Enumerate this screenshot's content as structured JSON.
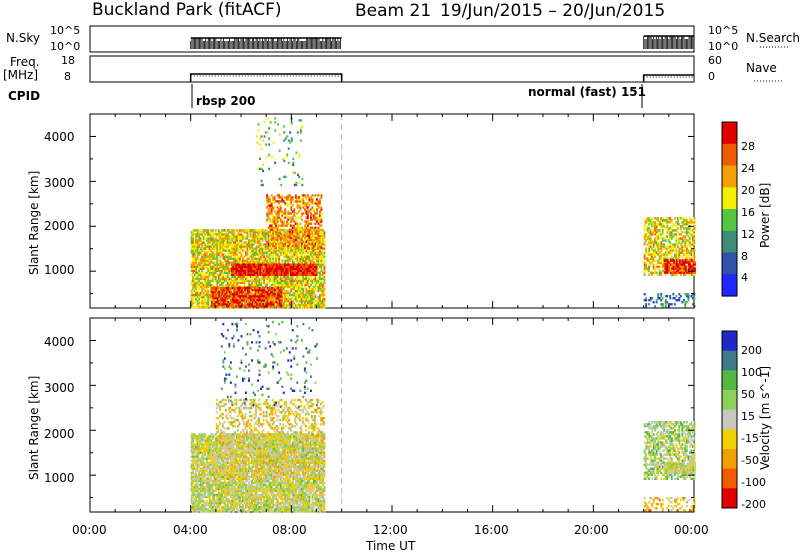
{
  "header": {
    "station": "Buckland Park (fitACF)",
    "beam": "Beam 21",
    "date_range": "19/Jun/2015 – 20/Jun/2015"
  },
  "status": {
    "nsky_label": "N.Sky",
    "nsky_ticks": [
      "10^5",
      "10^0"
    ],
    "nsearch_label": "N.Search",
    "nsearch_ticks": [
      "10^5",
      "10^0"
    ],
    "freq_label": "Freq.",
    "freq_unit": "[MHz]",
    "freq_ticks": [
      "18",
      "8"
    ],
    "nave_label": "Nave",
    "nave_ticks": [
      "60",
      "0"
    ],
    "cpid_label": "CPID",
    "cpid_modes": [
      "rbsp 200",
      "normal (fast) 151"
    ]
  },
  "axes": {
    "xlabel": "Time UT",
    "xticks": [
      "00:00",
      "04:00",
      "08:00",
      "12:00",
      "16:00",
      "20:00",
      "00:00"
    ],
    "ylabel": "Slant Range [km]",
    "yticks": [
      "1000",
      "2000",
      "3000",
      "4000"
    ]
  },
  "chart_data": [
    {
      "type": "heatmap",
      "title": "",
      "xlabel": "",
      "ylabel": "Slant Range [km]",
      "xlim_hours": [
        0,
        24
      ],
      "ylim_km": [
        180,
        4500
      ],
      "colorbar_label": "Power [dB]",
      "colorbar_ticks": [
        "4",
        "8",
        "12",
        "16",
        "20",
        "24",
        "28"
      ],
      "colorbar_range": [
        0,
        30
      ],
      "colors": [
        "#1f27ff",
        "#2e52a8",
        "#3f8c7a",
        "#52c842",
        "#f0f000",
        "#f4a000",
        "#f05a00",
        "#e00000"
      ],
      "mode_change_dashed_hours": [
        10.0
      ],
      "clusters": [
        {
          "t0": 4.0,
          "t1": 9.3,
          "r0": 180,
          "r1": 1900,
          "value": 18,
          "density": 0.8
        },
        {
          "t0": 5.6,
          "t1": 9.0,
          "r0": 900,
          "r1": 1150,
          "value": 28,
          "density": 0.95
        },
        {
          "t0": 7.0,
          "t1": 9.2,
          "r0": 1500,
          "r1": 2700,
          "value": 22,
          "density": 0.55
        },
        {
          "t0": 4.8,
          "t1": 7.6,
          "r0": 200,
          "r1": 650,
          "value": 26,
          "density": 0.8
        },
        {
          "t0": 6.6,
          "t1": 8.4,
          "r0": 2900,
          "r1": 4400,
          "value": 12,
          "density": 0.08
        },
        {
          "t0": 22.0,
          "t1": 24.0,
          "r0": 900,
          "r1": 2200,
          "value": 18,
          "density": 0.6
        },
        {
          "t0": 22.8,
          "t1": 24.0,
          "r0": 950,
          "r1": 1250,
          "value": 27,
          "density": 0.9
        },
        {
          "t0": 22.0,
          "t1": 24.0,
          "r0": 200,
          "r1": 500,
          "value": 8,
          "density": 0.3
        }
      ]
    },
    {
      "type": "heatmap",
      "title": "",
      "xlabel": "Time UT",
      "ylabel": "Slant Range [km]",
      "xlim_hours": [
        0,
        24
      ],
      "ylim_km": [
        180,
        4500
      ],
      "colorbar_label": "Velocity [m s^-1]",
      "colorbar_ticks": [
        "200",
        "100",
        "50",
        "15",
        "-15",
        "-50",
        "-100",
        "-200"
      ],
      "colorbar_range": [
        -250,
        250
      ],
      "colors": [
        "#e00000",
        "#f45a00",
        "#f0a000",
        "#f0d000",
        "#c8c8c0",
        "#8ad05a",
        "#52b842",
        "#3f7a8c",
        "#1f27c8"
      ],
      "mode_change_dashed_hours": [
        10.0
      ],
      "clusters": [
        {
          "t0": 4.0,
          "t1": 9.3,
          "r0": 180,
          "r1": 1900,
          "value": 0,
          "density": 0.85
        },
        {
          "t0": 5.0,
          "t1": 9.3,
          "r0": 900,
          "r1": 2700,
          "value": -40,
          "density": 0.35
        },
        {
          "t0": 5.2,
          "t1": 9.0,
          "r0": 2500,
          "r1": 4400,
          "value": 150,
          "density": 0.06
        },
        {
          "t0": 22.0,
          "t1": 24.0,
          "r0": 900,
          "r1": 2200,
          "value": 30,
          "density": 0.6
        },
        {
          "t0": 22.8,
          "t1": 24.0,
          "r0": 1050,
          "r1": 1250,
          "value": 0,
          "density": 0.9
        },
        {
          "t0": 22.0,
          "t1": 24.0,
          "r0": 200,
          "r1": 500,
          "value": -60,
          "density": 0.3
        }
      ]
    }
  ]
}
